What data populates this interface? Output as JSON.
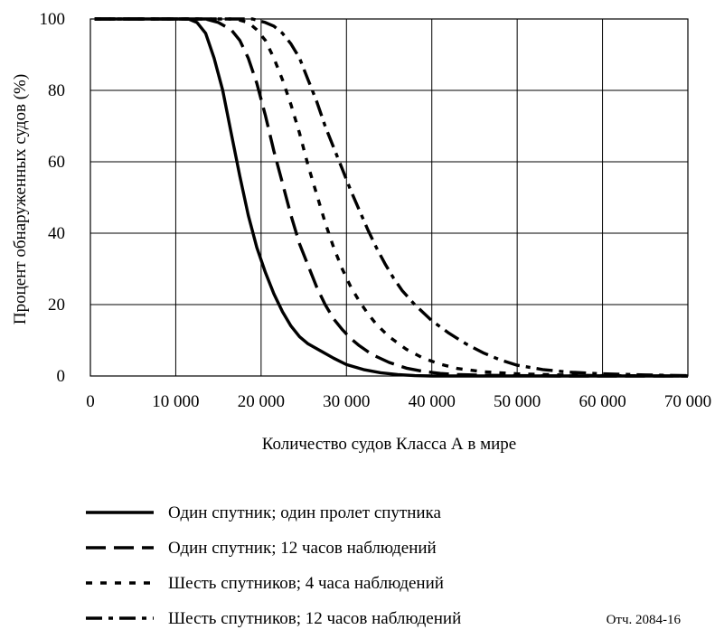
{
  "figure_ref": "Отч. 2084-16",
  "chart_data": {
    "type": "line",
    "xlabel": "Количество судов Класса А в мире",
    "ylabel": "Процент обнаруженных судов (%)",
    "xlim": [
      0,
      70000
    ],
    "ylim": [
      0,
      100
    ],
    "x_ticks": [
      0,
      10000,
      20000,
      30000,
      40000,
      50000,
      60000,
      70000
    ],
    "x_tick_labels": [
      "0",
      "10 000",
      "20 000",
      "30 000",
      "40 000",
      "50 000",
      "60 000",
      "70 000"
    ],
    "y_ticks": [
      0,
      20,
      40,
      60,
      80,
      100
    ],
    "y_tick_labels": [
      "0",
      "20",
      "40",
      "60",
      "80",
      "100"
    ],
    "grid": true,
    "legend_position": "below",
    "series": [
      {
        "name": "Один спутник; один пролет спутника",
        "style": "solid",
        "color": "#000000",
        "points": [
          [
            500,
            100
          ],
          [
            11500,
            100
          ],
          [
            12500,
            99
          ],
          [
            13500,
            96
          ],
          [
            14500,
            89
          ],
          [
            15500,
            80
          ],
          [
            16500,
            68
          ],
          [
            17500,
            56
          ],
          [
            18500,
            45
          ],
          [
            19500,
            36
          ],
          [
            20500,
            29
          ],
          [
            21500,
            23
          ],
          [
            22500,
            18
          ],
          [
            23500,
            14
          ],
          [
            24500,
            11
          ],
          [
            25500,
            9
          ],
          [
            27000,
            7
          ],
          [
            28500,
            5
          ],
          [
            30000,
            3.2
          ],
          [
            32000,
            1.8
          ],
          [
            34000,
            0.9
          ],
          [
            36000,
            0.4
          ],
          [
            38000,
            0.1
          ],
          [
            40000,
            0
          ],
          [
            70000,
            0
          ]
        ]
      },
      {
        "name": "Один спутник; 12 часов наблюдений",
        "style": "long-dash",
        "color": "#000000",
        "points": [
          [
            500,
            100
          ],
          [
            13500,
            100
          ],
          [
            15000,
            99
          ],
          [
            16500,
            97
          ],
          [
            17500,
            94
          ],
          [
            18500,
            89
          ],
          [
            19500,
            82
          ],
          [
            20500,
            73
          ],
          [
            21500,
            63
          ],
          [
            22500,
            54
          ],
          [
            23500,
            45
          ],
          [
            24500,
            37
          ],
          [
            25500,
            31
          ],
          [
            26500,
            25
          ],
          [
            27500,
            20
          ],
          [
            28500,
            16
          ],
          [
            29500,
            13
          ],
          [
            30500,
            10.5
          ],
          [
            31500,
            8.5
          ],
          [
            33000,
            6
          ],
          [
            35000,
            3.8
          ],
          [
            37000,
            2.2
          ],
          [
            39000,
            1.3
          ],
          [
            41000,
            0.7
          ],
          [
            43000,
            0.4
          ],
          [
            46000,
            0.2
          ],
          [
            50000,
            0.1
          ],
          [
            55000,
            0
          ],
          [
            70000,
            0
          ]
        ]
      },
      {
        "name": "Шесть спутников; 4 часа наблюдений",
        "style": "short-dash",
        "color": "#000000",
        "points": [
          [
            500,
            100
          ],
          [
            17000,
            100
          ],
          [
            18500,
            99
          ],
          [
            19500,
            97
          ],
          [
            20500,
            94
          ],
          [
            21500,
            89
          ],
          [
            22500,
            83
          ],
          [
            23500,
            76
          ],
          [
            24500,
            68
          ],
          [
            25500,
            59
          ],
          [
            26500,
            51
          ],
          [
            27500,
            43
          ],
          [
            28500,
            36
          ],
          [
            29500,
            30
          ],
          [
            30500,
            25
          ],
          [
            31500,
            21
          ],
          [
            32500,
            17.5
          ],
          [
            33500,
            14.5
          ],
          [
            35000,
            11
          ],
          [
            37000,
            7.5
          ],
          [
            39000,
            5
          ],
          [
            41000,
            3.3
          ],
          [
            43000,
            2.1
          ],
          [
            46000,
            1.2
          ],
          [
            50000,
            0.6
          ],
          [
            55000,
            0.3
          ],
          [
            60000,
            0.1
          ],
          [
            70000,
            0
          ]
        ]
      },
      {
        "name": "Шесть спутников; 12 часов наблюдений",
        "style": "dash-dot",
        "color": "#000000",
        "points": [
          [
            500,
            100
          ],
          [
            19000,
            100
          ],
          [
            20500,
            99
          ],
          [
            21500,
            98
          ],
          [
            22500,
            96
          ],
          [
            23500,
            93
          ],
          [
            24500,
            89
          ],
          [
            25500,
            83
          ],
          [
            26500,
            77
          ],
          [
            27500,
            70
          ],
          [
            28500,
            64
          ],
          [
            29500,
            58
          ],
          [
            30500,
            52
          ],
          [
            31500,
            46.5
          ],
          [
            32500,
            41
          ],
          [
            33500,
            36
          ],
          [
            34500,
            31.5
          ],
          [
            35500,
            27.5
          ],
          [
            36500,
            24
          ],
          [
            38000,
            20
          ],
          [
            40000,
            15.5
          ],
          [
            42000,
            12
          ],
          [
            44000,
            9
          ],
          [
            46000,
            6.5
          ],
          [
            48000,
            4.5
          ],
          [
            50000,
            3
          ],
          [
            53000,
            1.8
          ],
          [
            56000,
            1.1
          ],
          [
            60000,
            0.6
          ],
          [
            65000,
            0.3
          ],
          [
            70000,
            0.1
          ]
        ]
      }
    ]
  }
}
